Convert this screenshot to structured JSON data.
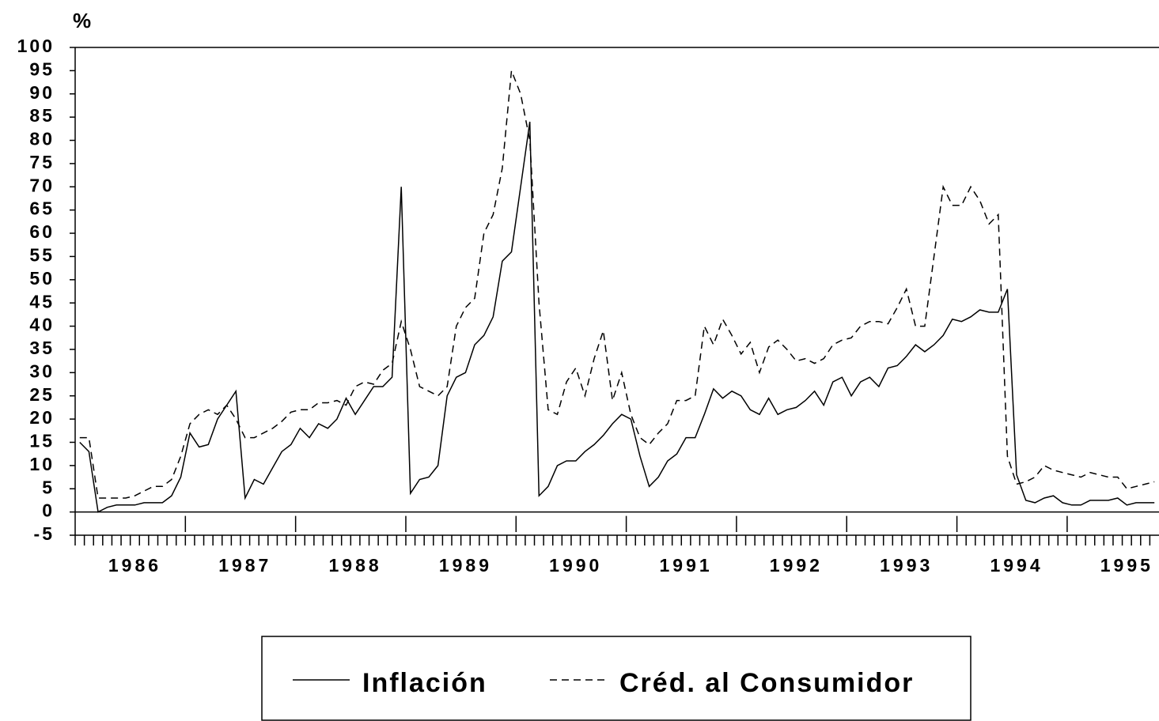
{
  "chart_data": {
    "type": "line",
    "y_axis_label": "%",
    "categories": [
      null,
      null,
      null,
      null,
      null,
      null,
      "1986",
      null,
      null,
      null,
      null,
      null,
      null,
      null,
      null,
      null,
      null,
      null,
      "1987",
      null,
      null,
      null,
      null,
      null,
      null,
      null,
      null,
      null,
      null,
      null,
      "1988",
      null,
      null,
      null,
      null,
      null,
      null,
      null,
      null,
      null,
      null,
      null,
      "1989",
      null,
      null,
      null,
      null,
      null,
      null,
      null,
      null,
      null,
      null,
      null,
      "1990",
      null,
      null,
      null,
      null,
      null,
      null,
      null,
      null,
      null,
      null,
      null,
      "1991",
      null,
      null,
      null,
      null,
      null,
      null,
      null,
      null,
      null,
      null,
      null,
      "1992",
      null,
      null,
      null,
      null,
      null,
      null,
      null,
      null,
      null,
      null,
      null,
      "1993",
      null,
      null,
      null,
      null,
      null,
      null,
      null,
      null,
      null,
      null,
      null,
      "1994",
      null,
      null,
      null,
      null,
      null,
      null,
      null,
      null,
      null,
      null,
      null,
      "1995",
      null,
      null,
      null
    ],
    "series": [
      {
        "name": "Inflación",
        "color": "#000000",
        "style": "solid",
        "values": [
          15,
          13,
          0,
          1,
          1.5,
          1.5,
          1.5,
          2,
          2,
          2,
          3.5,
          7.5,
          17,
          14,
          14.5,
          20,
          23,
          26,
          3,
          7,
          6,
          9.5,
          13,
          14.5,
          18,
          16,
          19,
          18,
          20,
          24.5,
          21,
          24,
          27,
          27,
          29,
          70,
          4,
          7,
          7.5,
          10,
          25,
          29,
          30,
          36,
          38,
          42,
          54,
          56,
          70,
          84,
          3.5,
          5.5,
          10,
          11,
          11,
          13,
          14.5,
          16.5,
          19,
          21,
          20,
          12,
          5.5,
          7.5,
          11,
          12.5,
          16,
          16,
          21,
          26.5,
          24.5,
          26,
          25,
          22,
          21,
          24.5,
          21,
          22,
          22.5,
          24,
          26,
          23,
          28,
          29,
          25,
          28,
          29,
          27,
          31,
          31.5,
          33.5,
          36,
          34.5,
          36,
          38,
          41.5,
          41,
          42,
          43.5,
          43,
          43,
          48,
          8,
          2.5,
          2,
          3,
          3.5,
          2,
          1.5,
          1.5,
          2.5,
          2.5,
          2.5,
          3,
          1.5,
          2,
          2,
          2
        ]
      },
      {
        "name": "Créd. al Consumidor",
        "color": "#000000",
        "style": "dashed",
        "values": [
          16,
          16,
          3,
          3,
          3,
          3,
          3.5,
          4.5,
          5.5,
          5.5,
          7,
          12,
          19,
          21,
          22,
          21,
          23,
          20,
          16,
          16,
          17,
          18,
          19.5,
          21.5,
          22,
          22,
          23.5,
          23.5,
          24,
          23,
          27,
          28,
          27.5,
          30.5,
          32,
          41,
          35,
          27,
          26,
          25,
          27,
          40,
          44,
          46,
          60,
          64,
          74,
          95,
          90,
          80,
          45,
          22,
          21,
          28,
          31,
          25,
          33,
          39,
          24,
          30,
          21,
          16,
          14.5,
          17,
          19,
          24,
          24,
          25,
          40,
          36,
          41.5,
          38,
          34,
          36.5,
          30,
          35.5,
          37,
          35,
          32.5,
          33,
          32,
          33,
          36,
          37,
          37.5,
          40,
          41,
          41,
          40.5,
          44,
          48,
          40,
          40,
          55,
          70,
          66,
          66,
          70,
          67,
          62,
          64,
          12,
          6,
          6.5,
          7.5,
          10,
          9,
          8.5,
          8,
          7.5,
          8.5,
          8,
          7.5,
          7.5,
          5,
          5.5,
          6,
          6.5
        ]
      }
    ],
    "ylim": [
      -5,
      100
    ],
    "yticks": [
      -5,
      0,
      5,
      10,
      15,
      20,
      25,
      30,
      35,
      40,
      45,
      50,
      55,
      60,
      65,
      70,
      75,
      80,
      85,
      90,
      95,
      100
    ],
    "grid": false,
    "legend": "bottom"
  }
}
